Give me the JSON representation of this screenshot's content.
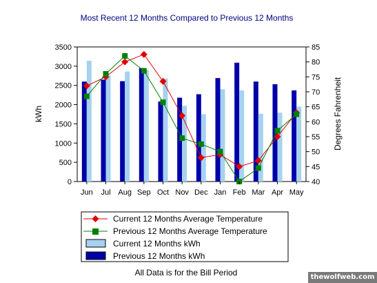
{
  "chart_data": {
    "type": "bar",
    "title": "Most Recent 12 Months Compared to Previous 12 Months",
    "categories": [
      "Jun",
      "Jul",
      "Aug",
      "Sep",
      "Oct",
      "Nov",
      "Dec",
      "Jan",
      "Feb",
      "Mar",
      "Apr",
      "May"
    ],
    "ylabel": "kWh",
    "ylim": [
      0,
      3500
    ],
    "yticks": [
      0,
      500,
      1000,
      1500,
      2000,
      2500,
      3000,
      3500
    ],
    "y2label": "Degrees Fahrenheit",
    "y2lim": [
      40,
      85
    ],
    "y2ticks": [
      40,
      45,
      50,
      55,
      60,
      65,
      70,
      75,
      80,
      85
    ],
    "legend_position": "bottom",
    "grid": false,
    "series": [
      {
        "name": "Previous 12 Months kWh",
        "kind": "bar",
        "axis": "left",
        "color": "#0000a8",
        "values": [
          2600,
          2650,
          2610,
          2950,
          2080,
          2180,
          2270,
          2690,
          3090,
          2600,
          2530,
          2370
        ]
      },
      {
        "name": "Current 12 Months kWh",
        "kind": "bar",
        "axis": "left",
        "color": "#a6d2f0",
        "values": [
          3140,
          2760,
          2860,
          2900,
          2680,
          1970,
          1750,
          2400,
          2370,
          1760,
          1790,
          1950
        ]
      },
      {
        "name": "Current 12 Months Average Temperature",
        "kind": "line",
        "marker": "diamond",
        "axis": "right",
        "color": "#e00000",
        "values": [
          72,
          75,
          80,
          82.5,
          73.5,
          62,
          48,
          49,
          45,
          47,
          55,
          63
        ]
      },
      {
        "name": "Previous 12 Months Average Temperature",
        "kind": "line",
        "marker": "square",
        "axis": "right",
        "color": "#008000",
        "values": [
          68.5,
          76,
          82,
          77,
          66.5,
          54.5,
          52.5,
          50,
          40,
          44.5,
          57,
          62.5
        ]
      }
    ],
    "footer": "All Data is for the Bill Period"
  },
  "watermark": "thewolfweb.com"
}
